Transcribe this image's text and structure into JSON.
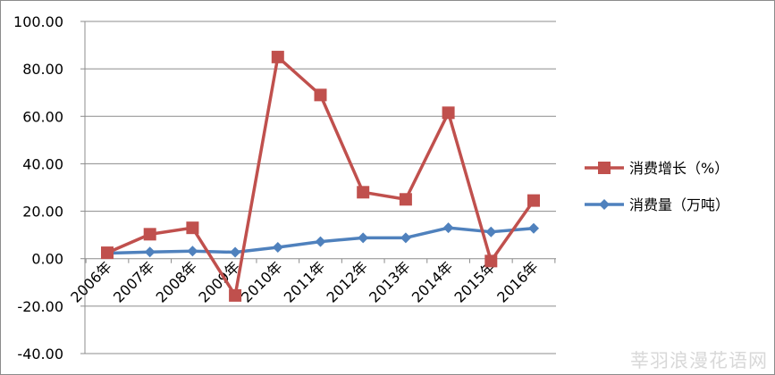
{
  "chart_data": {
    "type": "line",
    "categories": [
      "2006年",
      "2007年",
      "2008年",
      "2009年",
      "2010年",
      "2011年",
      "2012年",
      "2013年",
      "2014年",
      "2015年",
      "2016年"
    ],
    "series": [
      {
        "name": "消费增长（%）",
        "values": [
          2.5,
          10.3,
          13.0,
          -15.5,
          85.0,
          69.0,
          28.0,
          25.0,
          61.5,
          -1.0,
          24.5
        ],
        "color": "#c0504d",
        "marker": "square"
      },
      {
        "name": "消费量（万吨）",
        "values": [
          2.3,
          2.8,
          3.2,
          2.7,
          4.8,
          7.2,
          8.8,
          8.8,
          13.0,
          11.3,
          12.8
        ],
        "color": "#4f81bd",
        "marker": "diamond"
      }
    ],
    "yticks": [
      "100.00",
      "80.00",
      "60.00",
      "40.00",
      "20.00",
      "0.00",
      "-20.00",
      "-40.00"
    ],
    "ylim": [
      -40,
      100
    ],
    "grid": true,
    "legend": "right"
  },
  "watermark": "莘羽浪漫花语网"
}
